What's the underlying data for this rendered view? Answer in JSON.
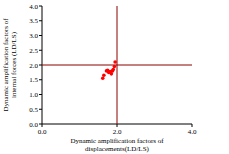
{
  "chart_data": {
    "type": "scatter",
    "x_label": [
      "Dynamic amplification factors of",
      "displacements(LD/LS)"
    ],
    "y_label": [
      "Dynamic amplification factors of",
      "internal forces (LD/LS)"
    ],
    "x": [
      1.62,
      1.65,
      1.72,
      1.75,
      1.78,
      1.82,
      1.85,
      1.88,
      1.9,
      1.93,
      1.95
    ],
    "values": [
      1.55,
      1.65,
      1.8,
      1.82,
      1.75,
      1.78,
      1.7,
      1.8,
      1.85,
      1.95,
      2.1
    ],
    "color": "#ff0000",
    "marker": "circle",
    "xlim": [
      0,
      4
    ],
    "ylim": [
      0,
      4
    ],
    "xticks": [
      {
        "value": 0,
        "label": "0.0"
      },
      {
        "value": 2,
        "label": "2.0"
      },
      {
        "value": 4,
        "label": "4.0"
      }
    ],
    "yticks": [
      {
        "value": 0,
        "label": "0.0"
      },
      {
        "value": 0.5,
        "label": "0.5"
      },
      {
        "value": 1,
        "label": "1.0"
      },
      {
        "value": 1.5,
        "label": "1.5"
      },
      {
        "value": 2,
        "label": "2.0"
      },
      {
        "value": 2.5,
        "label": "2.5"
      },
      {
        "value": 3,
        "label": "3.0"
      },
      {
        "value": 3.5,
        "label": "3.5"
      },
      {
        "value": 4,
        "label": "4.0"
      }
    ],
    "hlines": [
      2
    ],
    "vlines": [
      2
    ],
    "reference_color": "#8b0000"
  }
}
